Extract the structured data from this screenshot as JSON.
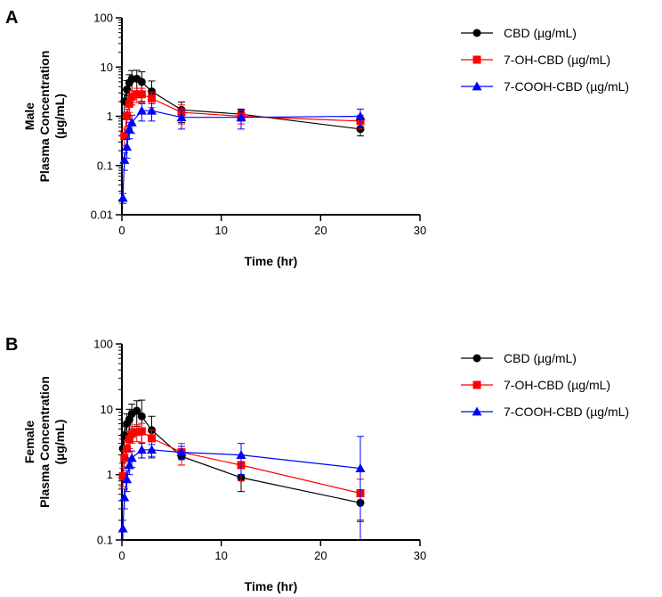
{
  "panel_labels": [
    "A",
    "B"
  ],
  "chart_data": [
    {
      "type": "line",
      "panel": "A",
      "xlabel": "Time (hr)",
      "ylabel": [
        "Male",
        "Plasma Concentration",
        "(µg/mL)"
      ],
      "xscale": "linear",
      "yscale": "log",
      "xlim": [
        0,
        30
      ],
      "ylim": [
        0.01,
        100
      ],
      "xticks": [
        "0",
        "10",
        "20",
        "30"
      ],
      "yticks": [
        "0.01",
        "0.1",
        "1",
        "10",
        "100"
      ],
      "legend_position": "right",
      "series": [
        {
          "name": "CBD (µg/mL)",
          "color": "#000000",
          "marker": "circle",
          "x": [
            0.25,
            0.5,
            0.75,
            1,
            1.5,
            2,
            3,
            6,
            12,
            24
          ],
          "y": [
            2.0,
            3.5,
            4.8,
            5.7,
            5.8,
            5.0,
            3.2,
            1.35,
            1.1,
            0.55
          ],
          "err": [
            0.8,
            1.8,
            2.2,
            2.8,
            2.8,
            3.0,
            2.0,
            0.6,
            0.3,
            0.15
          ]
        },
        {
          "name": "7-OH-CBD (µg/mL)",
          "color": "#ff0000",
          "marker": "square",
          "x": [
            0.25,
            0.5,
            0.75,
            1,
            1.5,
            2,
            3,
            6,
            12,
            24
          ],
          "y": [
            0.4,
            1.0,
            1.8,
            2.5,
            2.8,
            2.8,
            2.3,
            1.2,
            1.0,
            0.8
          ],
          "err": [
            0.15,
            0.4,
            0.6,
            0.8,
            0.9,
            0.9,
            0.8,
            0.5,
            0.3,
            0.25
          ]
        },
        {
          "name": "7-COOH-CBD (µg/mL)",
          "color": "#0000ff",
          "marker": "triangle",
          "x": [
            0.1,
            0.25,
            0.5,
            0.75,
            1,
            2,
            3,
            6,
            12,
            24
          ],
          "y": [
            0.022,
            0.13,
            0.24,
            0.55,
            0.75,
            1.3,
            1.3,
            0.95,
            0.95,
            1.0
          ],
          "err": [
            0.005,
            0.05,
            0.1,
            0.2,
            0.3,
            0.5,
            0.5,
            0.4,
            0.4,
            0.4
          ]
        }
      ]
    },
    {
      "type": "line",
      "panel": "B",
      "xlabel": "Time (hr)",
      "ylabel": [
        "Female",
        "Plasma Concentration",
        "(µg/mL)"
      ],
      "xscale": "linear",
      "yscale": "log",
      "xlim": [
        0,
        30
      ],
      "ylim": [
        0.1,
        100
      ],
      "xticks": [
        "0",
        "10",
        "20",
        "30"
      ],
      "yticks": [
        "0.1",
        "1",
        "10",
        "100"
      ],
      "legend_position": "right",
      "series": [
        {
          "name": "CBD (µg/mL)",
          "color": "#000000",
          "marker": "circle",
          "x": [
            0.1,
            0.25,
            0.5,
            0.75,
            1,
            1.5,
            2,
            3,
            6,
            12,
            24
          ],
          "y": [
            2.5,
            4.0,
            6.0,
            7.0,
            8.5,
            9.5,
            7.8,
            4.8,
            1.9,
            0.9,
            0.37
          ],
          "err": [
            1.0,
            1.5,
            2.5,
            3.0,
            3.5,
            4.0,
            6.0,
            3.0,
            0.5,
            0.35,
            0.17
          ]
        },
        {
          "name": "7-OH-CBD (µg/mL)",
          "color": "#ff0000",
          "marker": "square",
          "x": [
            0.1,
            0.25,
            0.5,
            0.75,
            1,
            1.5,
            2,
            3,
            6,
            12,
            24
          ],
          "y": [
            0.95,
            1.8,
            2.5,
            3.5,
            4.2,
            4.5,
            4.6,
            3.6,
            2.2,
            1.4,
            0.52
          ],
          "err": [
            0.3,
            0.5,
            0.8,
            1.0,
            1.2,
            1.3,
            1.5,
            1.2,
            0.8,
            0.6,
            0.33
          ]
        },
        {
          "name": "7-COOH-CBD (µg/mL)",
          "color": "#0000ff",
          "marker": "triangle",
          "x": [
            0.1,
            0.25,
            0.5,
            0.75,
            1,
            2,
            3,
            6,
            12,
            24
          ],
          "y": [
            0.15,
            0.45,
            0.85,
            1.4,
            1.8,
            2.4,
            2.4,
            2.2,
            2.0,
            1.25
          ],
          "err": [
            0.05,
            0.15,
            0.3,
            0.4,
            0.5,
            0.6,
            0.5,
            0.5,
            1.0,
            2.6
          ]
        }
      ]
    }
  ]
}
